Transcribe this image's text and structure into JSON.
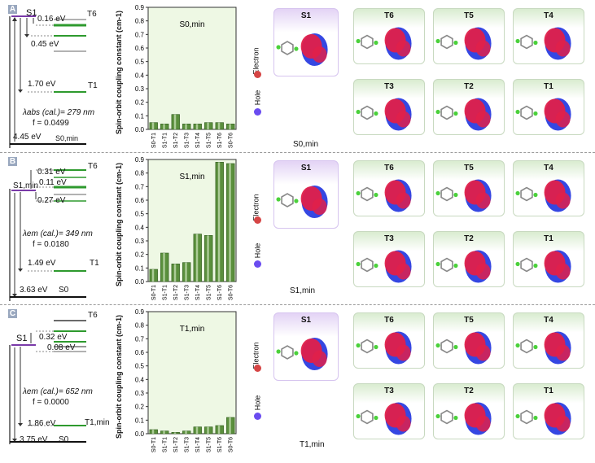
{
  "panels": [
    {
      "letter": "A",
      "levels": {
        "s1": "S1",
        "t6": "T6",
        "t1": "T1",
        "gap1": "0.16 eV",
        "gap2": "0.45 eV",
        "gap3": "1.70 eV",
        "ground_energy": "4.45 eV",
        "ground_state": "S0,min"
      },
      "lambda_label": "λabs (cal.)= 279 nm",
      "f_label": "f = 0.0499",
      "chart_title": "S0,min",
      "mol_label": "S0,min",
      "tiles": [
        "S1",
        "T6",
        "T5",
        "T4",
        "T3",
        "T2",
        "T1"
      ]
    },
    {
      "letter": "B",
      "levels": {
        "s1": "S1,min",
        "t6": "T6",
        "t1": "T1",
        "gap1": "0.31 eV",
        "gap2": "0.11 eV",
        "gap3": "0.27 eV",
        "gap4": "1.49 eV",
        "ground_energy": "3.63 eV",
        "ground_state": "S0"
      },
      "lambda_label": "λem (cal.)= 349 nm",
      "f_label": "f = 0.0180",
      "chart_title": "S1,min",
      "mol_label": "S1,min",
      "tiles": [
        "S1",
        "T6",
        "T5",
        "T4",
        "T3",
        "T2",
        "T1"
      ]
    },
    {
      "letter": "C",
      "levels": {
        "s1": "S1",
        "t6": "T6",
        "t1": "T1,min",
        "gap1": "0.32 eV",
        "gap2": "0.08 eV",
        "gap3": "1.86 eV",
        "ground_energy": "3.75 eV",
        "ground_state": "S0"
      },
      "lambda_label": "λem (cal.)= 652 nm",
      "f_label": "f = 0.0000",
      "chart_title": "T1,min",
      "mol_label": "T1,min",
      "tiles": [
        "S1",
        "T6",
        "T5",
        "T4",
        "T3",
        "T2",
        "T1"
      ]
    }
  ],
  "row_labels": {
    "electron": "Electron",
    "hole": "Hole"
  },
  "colors": {
    "electron": "#d64545",
    "hole": "#6a4cf0",
    "bar": "#5a8f3c",
    "chart_bg": "#eef8e4",
    "level_green": "#2e9a2e",
    "level_purple": "#7a3aa8"
  },
  "chart_data": [
    {
      "type": "bar",
      "title": "S0,min",
      "ylabel": "Spin-orbit coupling constant (cm-1)",
      "ylim": [
        0,
        0.9
      ],
      "yticks": [
        "0.0",
        "0.1",
        "0.2",
        "0.3",
        "0.4",
        "0.5",
        "0.6",
        "0.7",
        "0.8",
        "0.9"
      ],
      "categories": [
        "S0-T1",
        "S1-T1",
        "S1-T2",
        "S1-T3",
        "S1-T4",
        "S1-T5",
        "S1-T6",
        "S0-T6"
      ],
      "values": [
        0.05,
        0.04,
        0.11,
        0.04,
        0.04,
        0.05,
        0.05,
        0.04
      ]
    },
    {
      "type": "bar",
      "title": "S1,min",
      "ylabel": "Spin-orbit coupling constant (cm-1)",
      "ylim": [
        0,
        0.9
      ],
      "yticks": [
        "0.0",
        "0.1",
        "0.2",
        "0.3",
        "0.4",
        "0.5",
        "0.6",
        "0.7",
        "0.8",
        "0.9"
      ],
      "categories": [
        "S0-T1",
        "S1-T1",
        "S1-T2",
        "S1-T3",
        "S1-T4",
        "S1-T5",
        "S1-T6",
        "S0-T6"
      ],
      "values": [
        0.09,
        0.21,
        0.13,
        0.14,
        0.35,
        0.34,
        0.88,
        0.87
      ]
    },
    {
      "type": "bar",
      "title": "T1,min",
      "ylabel": "Spin-orbit coupling constant (cm-1)",
      "ylim": [
        0,
        0.9
      ],
      "yticks": [
        "0.0",
        "0.1",
        "0.2",
        "0.3",
        "0.4",
        "0.5",
        "0.6",
        "0.7",
        "0.8",
        "0.9"
      ],
      "categories": [
        "S0-T1",
        "S1-T1",
        "S1-T2",
        "S1-T3",
        "S1-T4",
        "S1-T5",
        "S1-T6",
        "S0-T6"
      ],
      "values": [
        0.03,
        0.02,
        0.01,
        0.02,
        0.05,
        0.05,
        0.06,
        0.12
      ]
    }
  ]
}
